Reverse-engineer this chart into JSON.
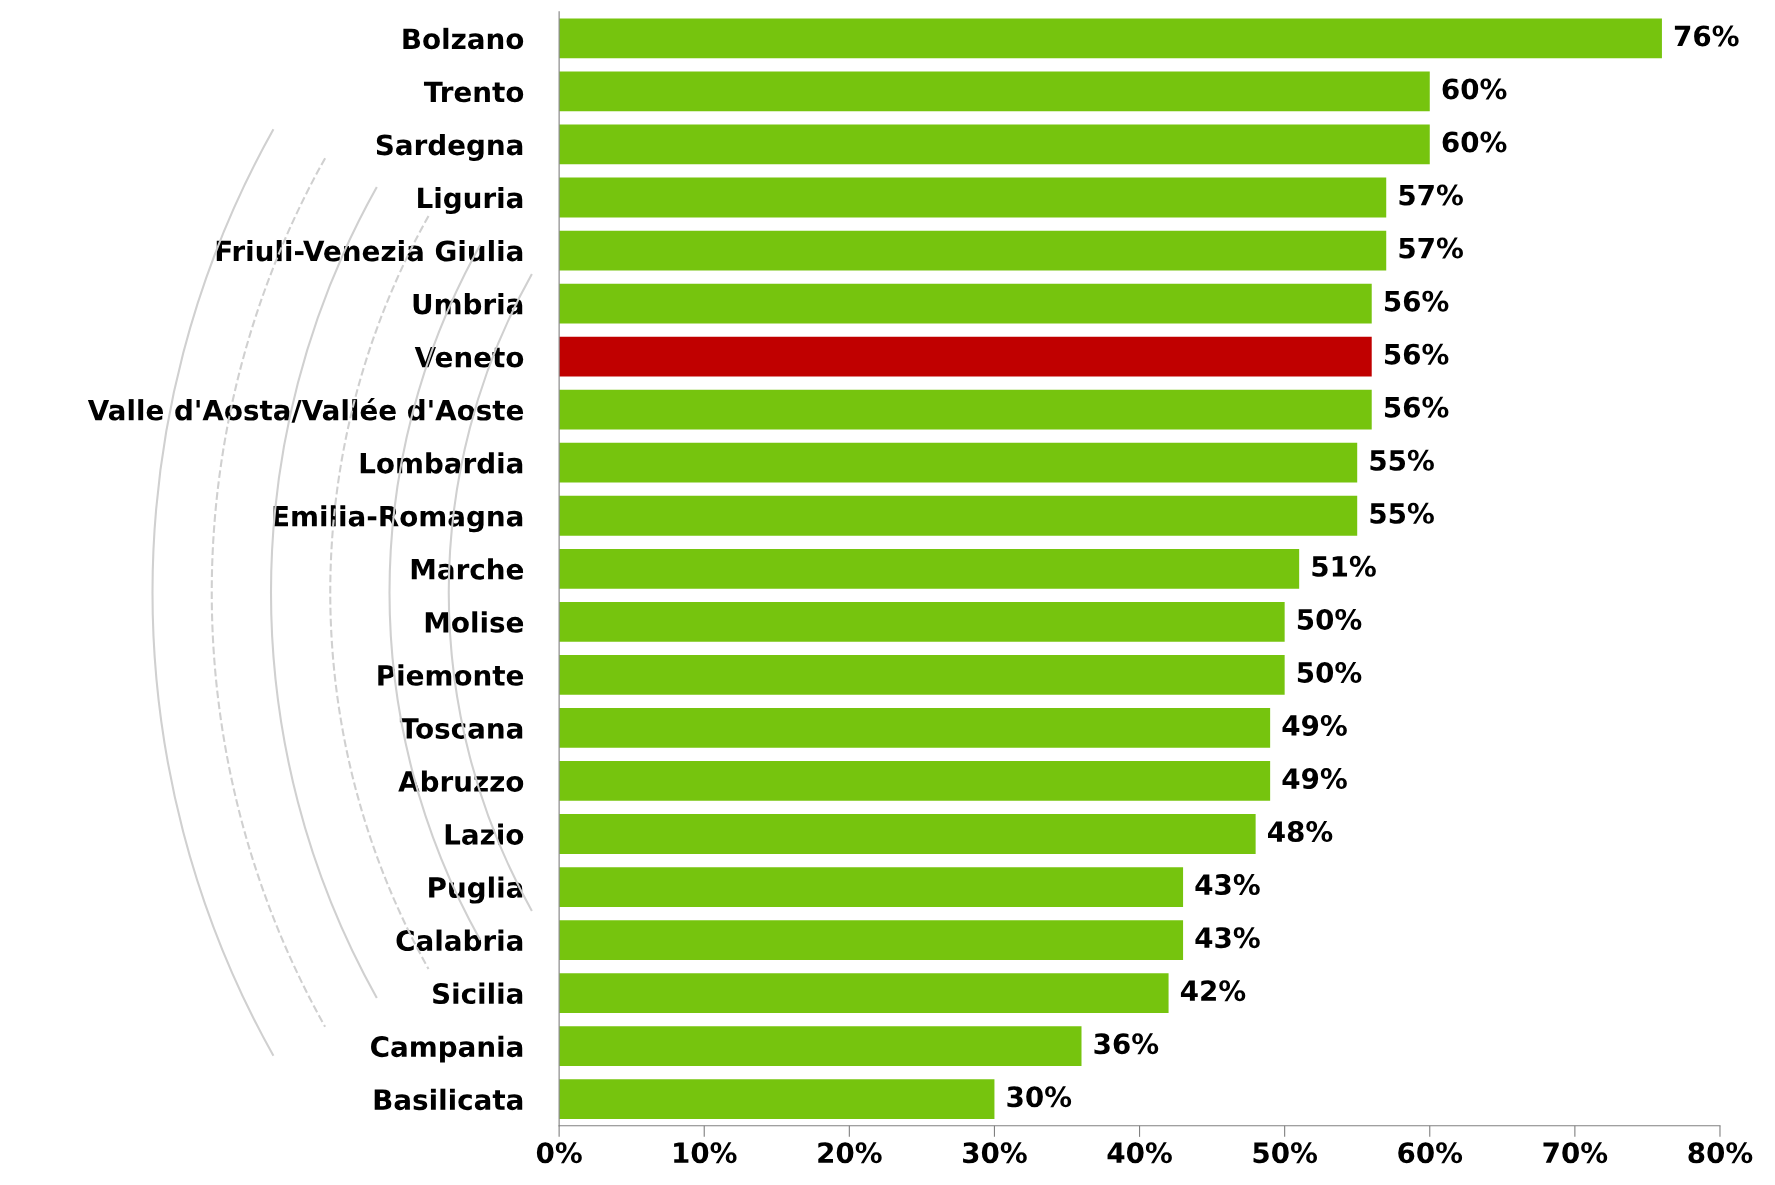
{
  "chart_data": {
    "type": "bar",
    "orientation": "horizontal",
    "categories": [
      "Bolzano",
      "Trento",
      "Sardegna",
      "Liguria",
      "Friuli-Venezia Giulia",
      "Umbria",
      "Veneto",
      "Valle d'Aosta/Vallée d'Aoste",
      "Lombardia",
      "Emilia-Romagna",
      "Marche",
      "Molise",
      "Piemonte",
      "Toscana",
      "Abruzzo",
      "Lazio",
      "Puglia",
      "Calabria",
      "Sicilia",
      "Campania",
      "Basilicata"
    ],
    "values": [
      76,
      60,
      60,
      57,
      57,
      56,
      56,
      56,
      55,
      55,
      51,
      50,
      50,
      49,
      49,
      48,
      43,
      43,
      42,
      36,
      30
    ],
    "value_labels": [
      "76%",
      "60%",
      "60%",
      "57%",
      "57%",
      "56%",
      "56%",
      "56%",
      "55%",
      "55%",
      "51%",
      "50%",
      "50%",
      "49%",
      "49%",
      "48%",
      "43%",
      "43%",
      "42%",
      "36%",
      "30%"
    ],
    "colors": [
      "#76c40e",
      "#76c40e",
      "#76c40e",
      "#76c40e",
      "#76c40e",
      "#76c40e",
      "#c00000",
      "#76c40e",
      "#76c40e",
      "#76c40e",
      "#76c40e",
      "#76c40e",
      "#76c40e",
      "#76c40e",
      "#76c40e",
      "#76c40e",
      "#76c40e",
      "#76c40e",
      "#76c40e",
      "#76c40e",
      "#76c40e"
    ],
    "xlim": [
      0,
      80
    ],
    "xticks": [
      {
        "value": 0,
        "label": "0%"
      },
      {
        "value": 10,
        "label": "10%"
      },
      {
        "value": 20,
        "label": "20%"
      },
      {
        "value": 30,
        "label": "30%"
      },
      {
        "value": 40,
        "label": "40%"
      },
      {
        "value": 50,
        "label": "50%"
      },
      {
        "value": 60,
        "label": "60%"
      },
      {
        "value": 70,
        "label": "70%"
      },
      {
        "value": 80,
        "label": "80%"
      }
    ],
    "grid": false,
    "legend": false
  }
}
